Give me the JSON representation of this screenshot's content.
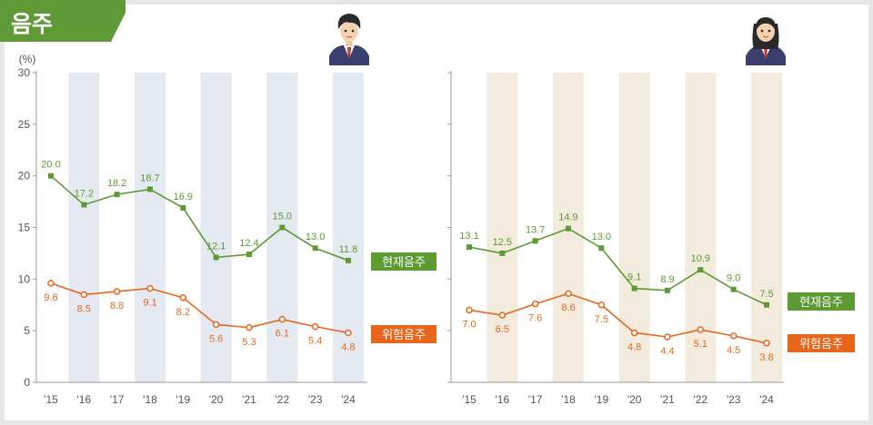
{
  "section_title": "음주",
  "colors": {
    "title_bg": "#5f9a36",
    "current_line": "#5b9b32",
    "risky_line": "#e8661c",
    "male_band": "#e5eaf2",
    "female_band": "#f3ebdd",
    "axis": "#999999"
  },
  "legend": {
    "current": "현재음주",
    "risky": "위험음주"
  },
  "chart_data": [
    {
      "type": "line",
      "name": "male",
      "icon": "male-student-icon",
      "ylabel": "(%)",
      "ylim": [
        0,
        30
      ],
      "yticks": [
        "0",
        "5",
        "10",
        "15",
        "20",
        "25",
        "30"
      ],
      "categories": [
        "'15",
        "'16",
        "'17",
        "'18",
        "'19",
        "'20",
        "'21",
        "'22",
        "'23",
        "'24"
      ],
      "series": [
        {
          "name": "현재음주",
          "values": [
            20.0,
            17.2,
            18.2,
            18.7,
            16.9,
            12.1,
            12.4,
            15.0,
            13.0,
            11.8
          ],
          "labels": [
            "20.0",
            "17.2",
            "18.2",
            "18.7",
            "16.9",
            "12.1",
            "12.4",
            "15.0",
            "13.0",
            "11.8"
          ]
        },
        {
          "name": "위험음주",
          "values": [
            9.6,
            8.5,
            8.8,
            9.1,
            8.2,
            5.6,
            5.3,
            6.1,
            5.4,
            4.8
          ],
          "labels": [
            "9.6",
            "8.5",
            "8.8",
            "9.1",
            "8.2",
            "5.6",
            "5.3",
            "6.1",
            "5.4",
            "4.8"
          ]
        }
      ]
    },
    {
      "type": "line",
      "name": "female",
      "icon": "female-student-icon",
      "ylim": [
        0,
        30
      ],
      "categories": [
        "'15",
        "'16",
        "'17",
        "'18",
        "'19",
        "'20",
        "'21",
        "'22",
        "'23",
        "'24"
      ],
      "series": [
        {
          "name": "현재음주",
          "values": [
            13.1,
            12.5,
            13.7,
            14.9,
            13.0,
            9.1,
            8.9,
            10.9,
            9.0,
            7.5
          ],
          "labels": [
            "13.1",
            "12.5",
            "13.7",
            "14.9",
            "13.0",
            "9.1",
            "8.9",
            "10.9",
            "9.0",
            "7.5"
          ]
        },
        {
          "name": "위험음주",
          "values": [
            7.0,
            6.5,
            7.6,
            8.6,
            7.5,
            4.8,
            4.4,
            5.1,
            4.5,
            3.8
          ],
          "labels": [
            "7.0",
            "6.5",
            "7.6",
            "8.6",
            "7.5",
            "4.8",
            "4.4",
            "5.1",
            "4.5",
            "3.8"
          ]
        }
      ]
    }
  ]
}
